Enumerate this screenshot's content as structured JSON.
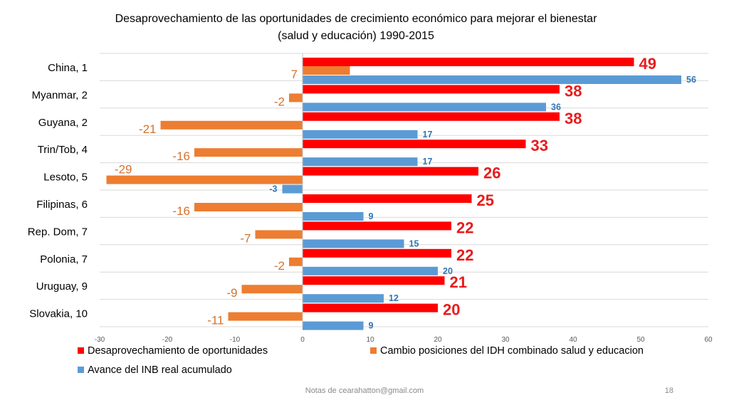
{
  "chart_data": {
    "type": "bar",
    "orientation": "horizontal",
    "title_lines": [
      "Desaprovechamiento de las oportunidades de crecimiento económico para mejorar el bienestar",
      "(salud y educación) 1990-2015"
    ],
    "categories": [
      "China, 1",
      "Myanmar, 2",
      "Guyana, 2",
      "Trin/Tob, 4",
      "Lesoto, 5",
      "Filipinas, 6",
      "Rep. Dom, 7",
      "Polonia, 7",
      "Uruguay, 9",
      "Slovakia, 10"
    ],
    "series": [
      {
        "name": "Desaprovechamiento de oportunidades",
        "color": "#ff0000",
        "label_color": "#e81c1c",
        "values": [
          49,
          38,
          38,
          33,
          26,
          25,
          22,
          22,
          21,
          20
        ]
      },
      {
        "name": "Cambio posiciones del IDH combinado salud y educacion",
        "color": "#ed7d31",
        "label_color": "#d5722c",
        "values": [
          7,
          -2,
          -21,
          -16,
          -29,
          -16,
          -7,
          -2,
          -9,
          -11
        ]
      },
      {
        "name": "Avance del INB real acumulado",
        "color": "#5b9bd5",
        "label_color": "#2e75b6",
        "values": [
          56,
          36,
          17,
          17,
          -3,
          9,
          15,
          20,
          12,
          9
        ]
      }
    ],
    "xlim": [
      -30,
      60
    ],
    "xticks": [
      -30,
      -20,
      -10,
      0,
      10,
      20,
      30,
      40,
      50,
      60
    ],
    "grid": true,
    "legend_position": "bottom"
  },
  "footer": {
    "note": "Notas de cearahatton@gmail.com",
    "page": "18"
  }
}
